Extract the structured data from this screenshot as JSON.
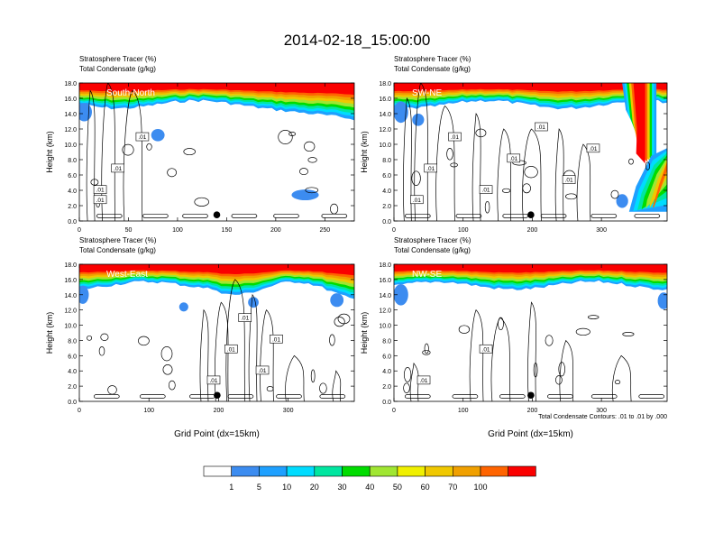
{
  "title": "2014-02-18_15:00:00",
  "colors": {
    "levels": [
      "#ffffff",
      "#3c8cf0",
      "#1ea0ff",
      "#00dcff",
      "#00e6a0",
      "#00dc00",
      "#a0e632",
      "#f0f000",
      "#f0c800",
      "#f0a000",
      "#ff6400",
      "#fa0000"
    ]
  },
  "chart_data": [
    {
      "type": "heatmap",
      "panel_label": "South-North",
      "left_title_1": "Stratosphere Tracer   (%)",
      "left_title_2": "Total Condensate   (g/kg)",
      "ylabel": "Height (km)",
      "xlabel": "",
      "yticks": [
        "0.0",
        "2.0",
        "4.0",
        "6.0",
        "8.0",
        "10.0",
        "12.0",
        "14.0",
        "16.0",
        "18.0"
      ],
      "xticks": [
        0,
        50,
        100,
        150,
        200,
        250
      ],
      "xlim": [
        0,
        280
      ],
      "ylim": [
        0,
        18
      ],
      "contour_labels": [
        ".01",
        ".01",
        ".01",
        ".01"
      ],
      "marker_x": 140
    },
    {
      "type": "heatmap",
      "panel_label": "SW-NE",
      "left_title_1": "Stratosphere Tracer   (%)",
      "left_title_2": "Total Condensate   (g/kg)",
      "ylabel": "Height (km)",
      "xlabel": "",
      "yticks": [
        "0.0",
        "2.0",
        "4.0",
        "6.0",
        "8.0",
        "10.0",
        "12.0",
        "14.0",
        "16.0",
        "18.0"
      ],
      "xticks": [
        0,
        100,
        200,
        300
      ],
      "xlim": [
        0,
        395
      ],
      "ylim": [
        0,
        18
      ],
      "contour_labels": [
        ".01",
        ".01",
        ".01",
        ".01",
        ".01",
        ".01",
        ".01",
        ".01"
      ],
      "marker_x": 198
    },
    {
      "type": "heatmap",
      "panel_label": "West-East",
      "left_title_1": "Stratosphere Tracer   (%)",
      "left_title_2": "Total Condensate   (g/kg)",
      "ylabel": "Height (km)",
      "xlabel": "Grid Point (dx=15km)",
      "yticks": [
        "0.0",
        "2.0",
        "4.0",
        "6.0",
        "8.0",
        "10.0",
        "12.0",
        "14.0",
        "16.0",
        "18.0"
      ],
      "xticks": [
        0,
        100,
        200,
        300
      ],
      "xlim": [
        0,
        395
      ],
      "ylim": [
        0,
        18
      ],
      "contour_labels": [
        ".01",
        ".01",
        ".01",
        ".01",
        ".01"
      ],
      "marker_x": 198
    },
    {
      "type": "heatmap",
      "panel_label": "NW-SE",
      "left_title_1": "Stratosphere Tracer   (%)",
      "left_title_2": "Total Condensate   (g/kg)",
      "ylabel": "Height (km)",
      "xlabel": "Grid Point (dx=15km)",
      "yticks": [
        "0.0",
        "2.0",
        "4.0",
        "6.0",
        "8.0",
        "10.0",
        "12.0",
        "14.0",
        "16.0",
        "18.0"
      ],
      "xticks": [
        0,
        100,
        200,
        300
      ],
      "xlim": [
        0,
        395
      ],
      "ylim": [
        0,
        18
      ],
      "contour_labels": [
        ".01",
        ".01"
      ],
      "marker_x": 198,
      "contour_info": "Total Condensate Contours: .01 to .01 by .000"
    }
  ],
  "colorbar": {
    "labels": [
      "1",
      "5",
      "10",
      "20",
      "30",
      "40",
      "50",
      "60",
      "70",
      "100"
    ]
  }
}
